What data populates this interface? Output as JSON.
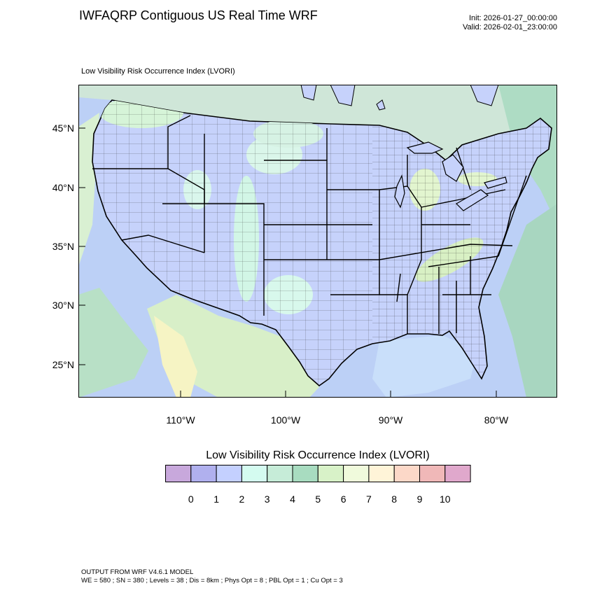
{
  "header": {
    "title": "IWFAQRP Contiguous US Real Time WRF",
    "init": "Init: 2026-01-27_00:00:00",
    "valid": "Valid: 2026-02-01_23:00:00"
  },
  "map": {
    "field_label": "Low Visibility Risk Occurrence Index   (LVORI)",
    "lat_labels": [
      "45°N",
      "40°N",
      "35°N",
      "30°N",
      "25°N"
    ],
    "lon_labels": [
      "110°W",
      "100°W",
      "90°W",
      "80°W"
    ]
  },
  "colorbar": {
    "title": "Low Visibility Risk Occurrence Index  (LVORI)",
    "labels": [
      "0",
      "1",
      "2",
      "3",
      "4",
      "5",
      "6",
      "7",
      "8",
      "9",
      "10"
    ],
    "colors": [
      "#c8a8dc",
      "#b0b0ee",
      "#c4d0ff",
      "#d4fbf0",
      "#c6ecd8",
      "#a8dcc0",
      "#d8f2c8",
      "#f0fadc",
      "#fff4d8",
      "#fcd8c8",
      "#f0b8b8",
      "#e0a8cc"
    ]
  },
  "footer": {
    "line1": "OUTPUT FROM WRF V4.6.1 MODEL",
    "line2": "WE = 580 ; SN = 380 ; Levels = 38 ; Dis = 8km ; Phys Opt = 8 ; PBL Opt = 1 ; Cu Opt = 3"
  }
}
